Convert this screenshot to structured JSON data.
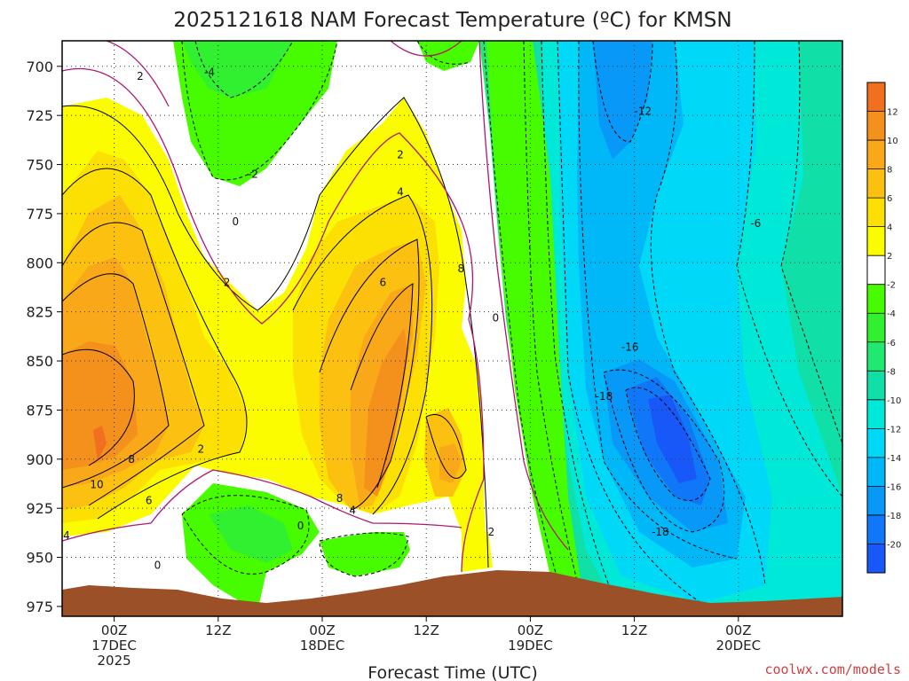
{
  "chart_data": {
    "type": "heatmap",
    "title": "2025121618 NAM Forecast Temperature (ºC) for KMSN",
    "xlabel": "Forecast Time (UTC)",
    "ylabel": "",
    "y_axis": {
      "unit": "hPa",
      "ticks": [
        700,
        725,
        750,
        775,
        800,
        825,
        850,
        875,
        900,
        925,
        950,
        975
      ],
      "range": [
        687,
        980
      ],
      "inverted": true
    },
    "x_axis": {
      "unit": "forecast hour",
      "range": [
        -6,
        84
      ],
      "ticks": [
        {
          "hour": 0,
          "lines": [
            "00Z",
            "17DEC",
            "2025"
          ]
        },
        {
          "hour": 12,
          "lines": [
            "12Z"
          ]
        },
        {
          "hour": 24,
          "lines": [
            "00Z",
            "18DEC"
          ]
        },
        {
          "hour": 36,
          "lines": [
            "12Z"
          ]
        },
        {
          "hour": 48,
          "lines": [
            "00Z",
            "19DEC"
          ]
        },
        {
          "hour": 60,
          "lines": [
            "12Z"
          ]
        },
        {
          "hour": 72,
          "lines": [
            "00Z",
            "20DEC"
          ]
        }
      ]
    },
    "colorbar": {
      "levels": [
        12,
        10,
        8,
        6,
        4,
        2,
        -2,
        -4,
        -6,
        -8,
        -10,
        -12,
        -14,
        -16,
        -18,
        -20
      ],
      "colors": [
        "#f07020",
        "#f4901c",
        "#f8a818",
        "#fcc010",
        "#fce004",
        "#fcfc00",
        "#ffffff",
        "#48fc00",
        "#30f030",
        "#20e870",
        "#10e0a8",
        "#00e8d8",
        "#00d8f8",
        "#00b8f8",
        "#0898f8",
        "#1078f8",
        "#1858f8"
      ]
    },
    "contour_labels": [
      {
        "text": "2",
        "hour": 3,
        "p": 705
      },
      {
        "text": "-4",
        "hour": 11,
        "p": 703
      },
      {
        "text": "-2",
        "hour": 16,
        "p": 755
      },
      {
        "text": "0",
        "hour": 14,
        "p": 779
      },
      {
        "text": "2",
        "hour": 13,
        "p": 810
      },
      {
        "text": "2",
        "hour": 33,
        "p": 745
      },
      {
        "text": "4",
        "hour": 33,
        "p": 764
      },
      {
        "text": "6",
        "hour": 31,
        "p": 810
      },
      {
        "text": "8",
        "hour": 40,
        "p": 803
      },
      {
        "text": "0",
        "hour": 44,
        "p": 828
      },
      {
        "text": "-12",
        "hour": 61,
        "p": 723
      },
      {
        "text": "-6",
        "hour": 74,
        "p": 780
      },
      {
        "text": "-16",
        "hour": 59.5,
        "p": 843
      },
      {
        "text": "-18",
        "hour": 56.5,
        "p": 868
      },
      {
        "text": "-18",
        "hour": 63,
        "p": 937
      },
      {
        "text": "10",
        "hour": -2,
        "p": 913
      },
      {
        "text": "8",
        "hour": 2,
        "p": 900
      },
      {
        "text": "6",
        "hour": 4,
        "p": 921
      },
      {
        "text": "4",
        "hour": -5.5,
        "p": 939
      },
      {
        "text": "2",
        "hour": 10,
        "p": 895
      },
      {
        "text": "0",
        "hour": 5,
        "p": 954
      },
      {
        "text": "0",
        "hour": 21.5,
        "p": 934
      },
      {
        "text": "8",
        "hour": 26,
        "p": 920
      },
      {
        "text": "4",
        "hour": 27.5,
        "p": 926
      },
      {
        "text": "2",
        "hour": 43.5,
        "p": 937
      }
    ],
    "grid": true,
    "legend": "colorbar right"
  },
  "credit": "coolwx.com/models",
  "colors": {
    "terrain": "#9c5028",
    "zero_line": "#b01870",
    "credit_text": "#d04040"
  }
}
